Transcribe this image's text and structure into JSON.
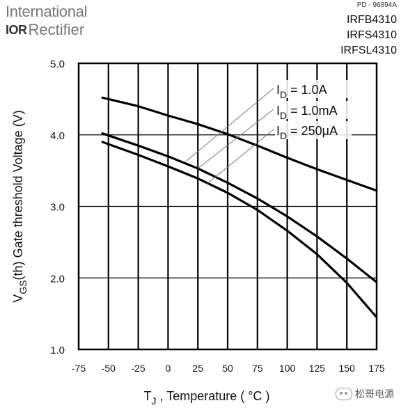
{
  "header": {
    "logo_line1": "International",
    "logo_mark": "IOR",
    "logo_line2": "Rectifier",
    "doc_number": "PD - 96894A",
    "part_numbers": [
      "IRFB4310",
      "IRFS4310",
      "IRFSL4310"
    ]
  },
  "watermark": {
    "text": "松哥电源",
    "icon": "wechat-icon"
  },
  "chart_data": {
    "type": "line",
    "title": "",
    "xlabel_main": "T",
    "xlabel_sub": "J",
    "xlabel_rest": " , Temperature ( °C )",
    "ylabel_main": "V",
    "ylabel_sub": "GS",
    "ylabel_rest": "(th) Gate threshold Voltage (V)",
    "xlim": [
      -75,
      175
    ],
    "ylim": [
      1.0,
      5.0
    ],
    "x_ticks": [
      -75,
      -50,
      -25,
      0,
      25,
      50,
      75,
      100,
      125,
      150,
      175
    ],
    "x_tick_labels": [
      "-75",
      "-50",
      "-25",
      "0",
      "25",
      "50",
      "75",
      "100",
      "125",
      "150",
      "175"
    ],
    "y_ticks": [
      1.0,
      2.0,
      3.0,
      4.0,
      5.0
    ],
    "y_tick_labels": [
      "1.0",
      "2.0",
      "3.0",
      "4.0",
      "5.0"
    ],
    "grid": true,
    "series": [
      {
        "name": "ID = 1.0A",
        "label_main": "I",
        "label_sub": "D",
        "label_rest": " = 1.0A",
        "x": [
          -55,
          -25,
          0,
          25,
          50,
          75,
          100,
          125,
          150,
          175
        ],
        "y": [
          4.52,
          4.4,
          4.27,
          4.15,
          4.01,
          3.85,
          3.68,
          3.52,
          3.37,
          3.22
        ]
      },
      {
        "name": "ID = 1.0mA",
        "label_main": "I",
        "label_sub": "D",
        "label_rest": " = 1.0mA",
        "x": [
          -55,
          -25,
          0,
          25,
          50,
          75,
          100,
          125,
          150,
          175
        ],
        "y": [
          4.02,
          3.85,
          3.7,
          3.53,
          3.33,
          3.11,
          2.86,
          2.58,
          2.27,
          1.94
        ]
      },
      {
        "name": "ID = 250μA",
        "label_main": "I",
        "label_sub": "D",
        "label_rest": " = 250μA",
        "x": [
          -55,
          -25,
          0,
          25,
          50,
          75,
          100,
          125,
          150,
          175
        ],
        "y": [
          3.9,
          3.72,
          3.56,
          3.39,
          3.19,
          2.95,
          2.66,
          2.33,
          1.93,
          1.45
        ]
      }
    ],
    "annotation_targets": [
      {
        "x": 15,
        "y": 3.63
      },
      {
        "x": 25,
        "y": 3.53
      },
      {
        "x": 33,
        "y": 3.32
      }
    ]
  }
}
